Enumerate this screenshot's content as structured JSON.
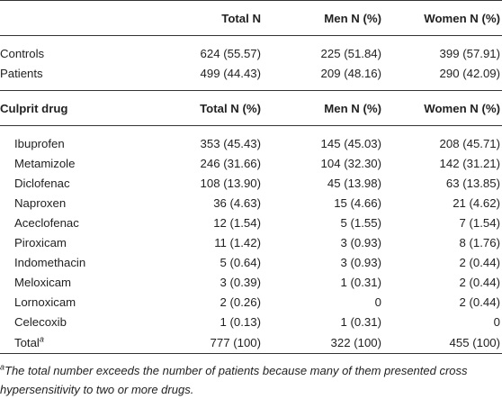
{
  "header": {
    "col0": "",
    "col1": "Total N",
    "col2": "Men N (%)",
    "col3": "Women N (%)"
  },
  "groups": [
    {
      "label": "Controls",
      "total": "624 (55.57)",
      "men": "225 (51.84)",
      "women": "399 (57.91)"
    },
    {
      "label": "Patients",
      "total": "499 (44.43)",
      "men": "209 (48.16)",
      "women": "290 (42.09)"
    }
  ],
  "drug_header": {
    "col0": "Culprit drug",
    "col1": "Total N (%)",
    "col2": "Men N (%)",
    "col3": "Women N (%)"
  },
  "drugs": [
    {
      "label": "Ibuprofen",
      "total": "353 (45.43)",
      "men": "145 (45.03)",
      "women": "208 (45.71)"
    },
    {
      "label": "Metamizole",
      "total": "246 (31.66)",
      "men": "104 (32.30)",
      "women": "142 (31.21)"
    },
    {
      "label": "Diclofenac",
      "total": "108 (13.90)",
      "men": "45 (13.98)",
      "women": "63 (13.85)"
    },
    {
      "label": "Naproxen",
      "total": "36 (4.63)",
      "men": "15 (4.66)",
      "women": "21 (4.62)"
    },
    {
      "label": "Aceclofenac",
      "total": "12 (1.54)",
      "men": "5 (1.55)",
      "women": "7 (1.54)"
    },
    {
      "label": "Piroxicam",
      "total": "11 (1.42)",
      "men": "3 (0.93)",
      "women": "8 (1.76)"
    },
    {
      "label": "Indomethacin",
      "total": "5 (0.64)",
      "men": "3 (0.93)",
      "women": "2 (0.44)"
    },
    {
      "label": "Meloxicam",
      "total": "3 (0.39)",
      "men": "1 (0.31)",
      "women": "2 (0.44)"
    },
    {
      "label": "Lornoxicam",
      "total": "2 (0.26)",
      "men": "0",
      "women": "2 (0.44)"
    },
    {
      "label": "Celecoxib",
      "total": "1 (0.13)",
      "men": "1 (0.31)",
      "women": "0"
    }
  ],
  "total_row": {
    "label": "Total",
    "label_sup": "a",
    "total": "777 (100)",
    "men": "322 (100)",
    "women": "455 (100)"
  },
  "footnote": {
    "marker": "a",
    "text": "The total number exceeds the number of patients because many of them presented cross hypersensitivity to two or more drugs."
  }
}
